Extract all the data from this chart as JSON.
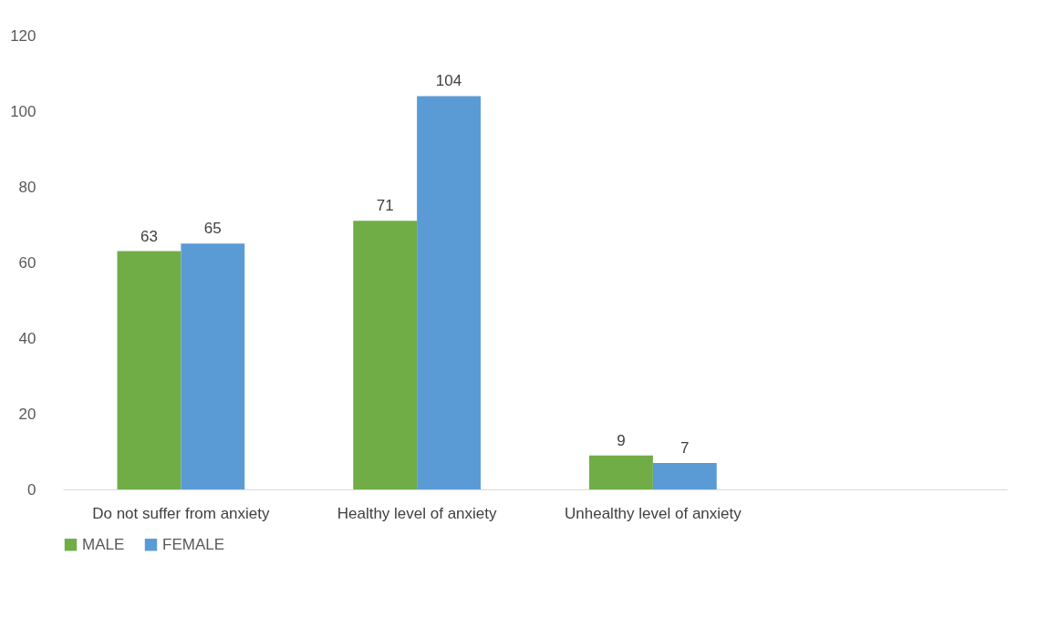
{
  "chart_data": {
    "type": "bar",
    "categories": [
      "Do not suffer from anxiety",
      "Healthy level of anxiety",
      "Unhealthy level of anxiety",
      null
    ],
    "series": [
      {
        "name": "MALE",
        "color": "#70ad47",
        "values": [
          63,
          71,
          9,
          null
        ]
      },
      {
        "name": "FEMALE",
        "color": "#5b9bd5",
        "values": [
          65,
          104,
          7,
          null
        ]
      }
    ],
    "ylim": [
      0,
      120
    ],
    "yticks": [
      0,
      20,
      40,
      60,
      80,
      100,
      120
    ],
    "grid": false,
    "legend": "bottom",
    "data_labels": true
  }
}
